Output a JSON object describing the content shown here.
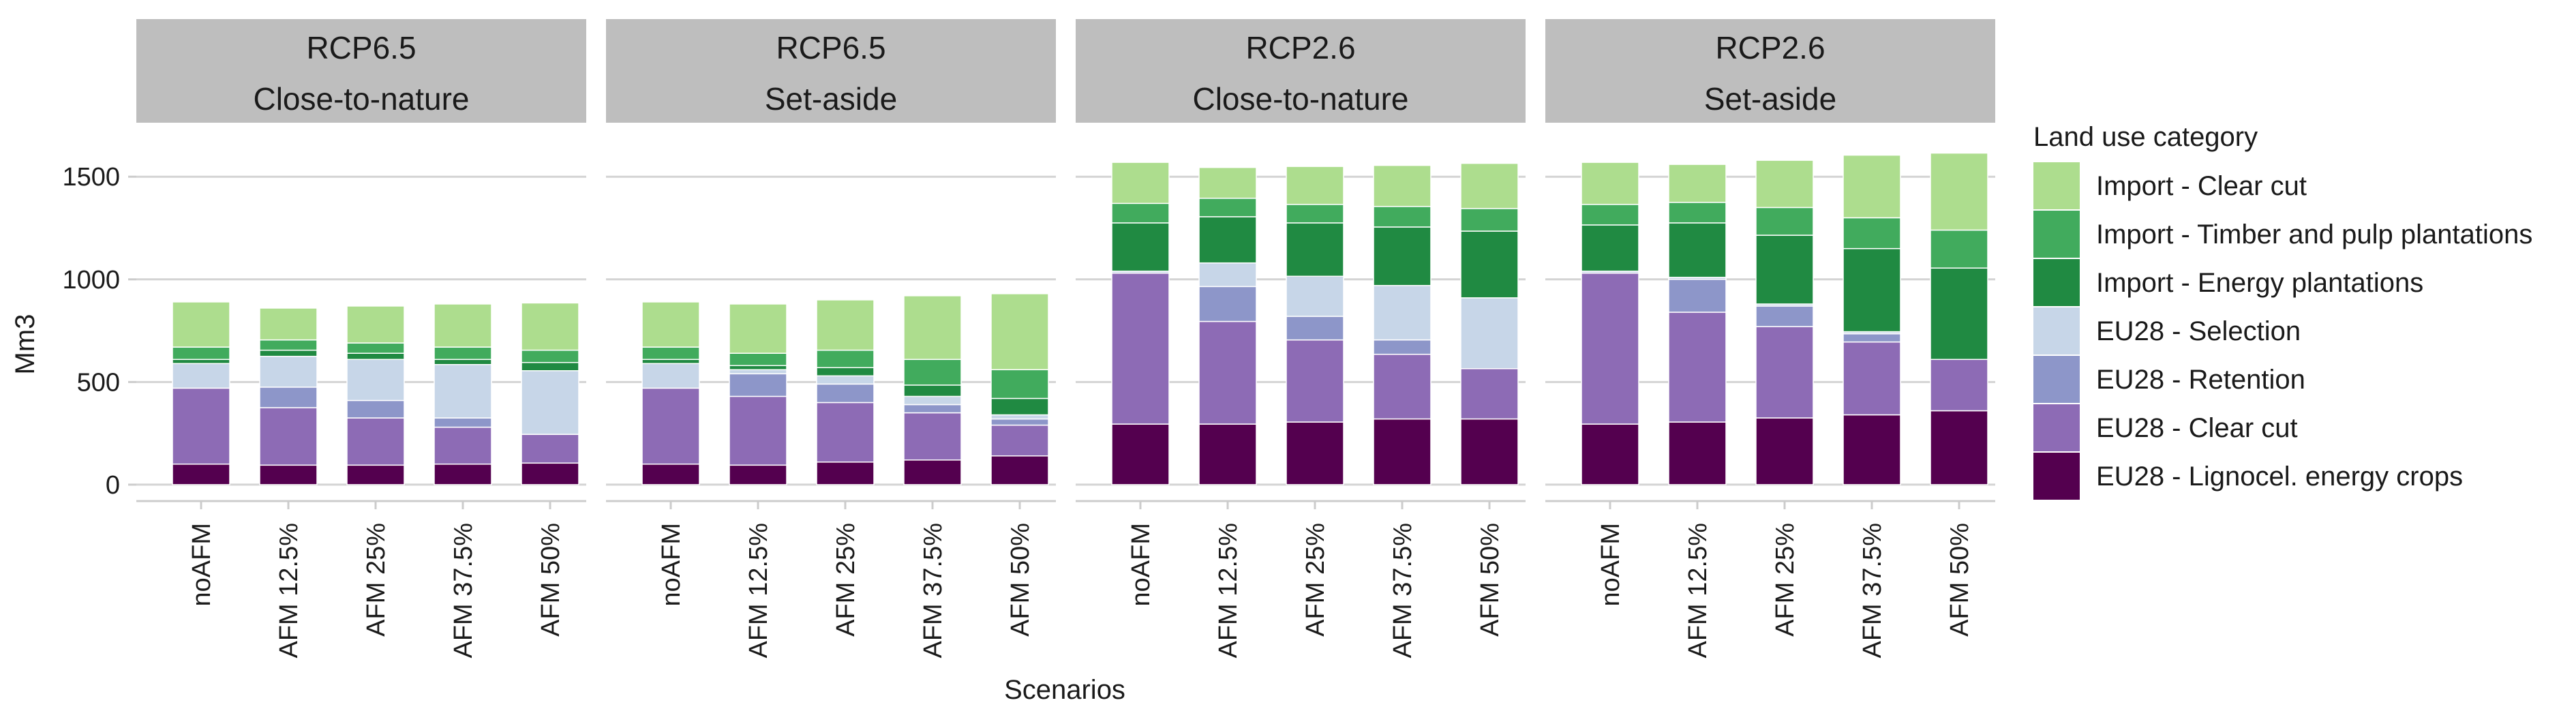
{
  "chart_data": {
    "type": "bar",
    "stacked": true,
    "ylabel": "Mm3",
    "xlabel": "Scenarios",
    "ylim": [
      -80,
      1680
    ],
    "yticks": [
      0,
      500,
      1000,
      1500
    ],
    "grid": true,
    "legend_position": "right",
    "legend_title": "Land use category",
    "categories": [
      "noAFM",
      "AFM 12.5%",
      "AFM 25%",
      "AFM 37.5%",
      "AFM 50%"
    ],
    "series": [
      {
        "name": "EU28 - Lignocel. energy crops",
        "color": "#54004f"
      },
      {
        "name": "EU28 - Clear cut",
        "color": "#8d6bb5"
      },
      {
        "name": "EU28 - Retention",
        "color": "#8d96c9"
      },
      {
        "name": "EU28 - Selection",
        "color": "#c7d6e8"
      },
      {
        "name": "Import - Energy plantations",
        "color": "#208a42"
      },
      {
        "name": "Import - Timber and pulp plantations",
        "color": "#41ab5d"
      },
      {
        "name": "Import - Clear cut",
        "color": "#addd8e"
      }
    ],
    "panels": [
      {
        "title_line1": "RCP6.5",
        "title_line2": "Close-to-nature",
        "values": [
          [
            100,
            370,
            0,
            120,
            20,
            60,
            220
          ],
          [
            95,
            280,
            100,
            150,
            30,
            50,
            155
          ],
          [
            95,
            230,
            85,
            200,
            30,
            50,
            180
          ],
          [
            100,
            180,
            45,
            260,
            25,
            60,
            210
          ],
          [
            105,
            140,
            0,
            310,
            40,
            60,
            230
          ]
        ]
      },
      {
        "title_line1": "RCP6.5",
        "title_line2": "Set-aside",
        "values": [
          [
            100,
            370,
            0,
            120,
            20,
            60,
            220
          ],
          [
            95,
            335,
            110,
            20,
            20,
            60,
            240
          ],
          [
            110,
            290,
            90,
            40,
            40,
            85,
            245
          ],
          [
            120,
            230,
            40,
            40,
            55,
            125,
            310
          ],
          [
            140,
            150,
            30,
            20,
            80,
            140,
            370
          ]
        ]
      },
      {
        "title_line1": "RCP2.6",
        "title_line2": "Close-to-nature",
        "values": [
          [
            295,
            735,
            0,
            10,
            235,
            95,
            200
          ],
          [
            295,
            500,
            170,
            115,
            225,
            90,
            150
          ],
          [
            305,
            400,
            115,
            195,
            260,
            90,
            185
          ],
          [
            320,
            315,
            70,
            265,
            285,
            100,
            200
          ],
          [
            320,
            245,
            0,
            345,
            325,
            110,
            220
          ]
        ]
      },
      {
        "title_line1": "RCP2.6",
        "title_line2": "Set-aside",
        "values": [
          [
            295,
            735,
            0,
            10,
            225,
            100,
            205
          ],
          [
            305,
            535,
            160,
            10,
            265,
            100,
            185
          ],
          [
            325,
            445,
            100,
            10,
            335,
            135,
            230
          ],
          [
            340,
            355,
            40,
            10,
            405,
            150,
            305
          ],
          [
            360,
            250,
            0,
            0,
            445,
            185,
            375
          ]
        ]
      }
    ]
  }
}
